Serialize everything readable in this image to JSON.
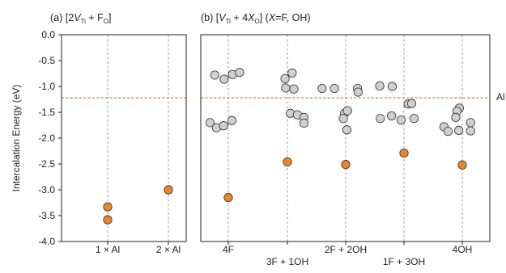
{
  "chart_data": [
    {
      "type": "scatter",
      "panel_title": {
        "pre": "(a) [2",
        "v": "V",
        "vsub": "Ti",
        "mid": " + F",
        "fsub": "O",
        "post": "]"
      },
      "ylabel": "Intercalation Energy (eV)",
      "ylim": [
        -4.0,
        0.0
      ],
      "yticks": [
        0.0,
        -0.5,
        -1.0,
        -1.5,
        -2.0,
        -2.5,
        -3.0,
        -3.5,
        -4.0
      ],
      "categories": [
        "1 × Al",
        "2 × Al"
      ],
      "reference_label": "Al",
      "reference_value": -1.22,
      "series": [
        {
          "color": "#e8862a",
          "points": [
            {
              "category": 0,
              "offset": 0,
              "y": -3.33
            },
            {
              "category": 0,
              "offset": 0,
              "y": -3.58
            },
            {
              "category": 1,
              "offset": 0,
              "y": -3.0
            }
          ]
        }
      ]
    },
    {
      "type": "scatter",
      "panel_title": {
        "pre": "(b) [",
        "v": "V",
        "vsub": "Ti",
        "mid": " + 4",
        "x": "X",
        "xsub": "O",
        "post": "] (",
        "xv": "X",
        "post2": "=F, OH)"
      },
      "ylim": [
        -4.0,
        0.0
      ],
      "categories": [
        "4F",
        "3F + 1OH",
        "2F + 2OH",
        "1F + 3OH",
        "4OH"
      ],
      "category_label_row": [
        0,
        1,
        0,
        1,
        0
      ],
      "reference_label": "Al",
      "reference_value": -1.22,
      "series": [
        {
          "color": "#cfcfcf",
          "points": [
            {
              "category": 0,
              "offset": -0.23,
              "y": -0.78
            },
            {
              "category": 0,
              "offset": -0.07,
              "y": -0.86
            },
            {
              "category": 0,
              "offset": 0.07,
              "y": -0.77
            },
            {
              "category": 0,
              "offset": 0.19,
              "y": -0.73
            },
            {
              "category": 0,
              "offset": -0.31,
              "y": -1.7
            },
            {
              "category": 0,
              "offset": -0.2,
              "y": -1.8
            },
            {
              "category": 0,
              "offset": -0.08,
              "y": -1.76
            },
            {
              "category": 0,
              "offset": 0.06,
              "y": -1.66
            },
            {
              "category": 1,
              "offset": -0.04,
              "y": -0.85
            },
            {
              "category": 1,
              "offset": 0.08,
              "y": -0.74
            },
            {
              "category": 1,
              "offset": -0.03,
              "y": -1.03
            },
            {
              "category": 1,
              "offset": 0.11,
              "y": -1.05
            },
            {
              "category": 1,
              "offset": 0.05,
              "y": -1.52
            },
            {
              "category": 1,
              "offset": 0.17,
              "y": -1.55
            },
            {
              "category": 1,
              "offset": 0.28,
              "y": -1.6
            },
            {
              "category": 1,
              "offset": 0.28,
              "y": -1.71
            },
            {
              "category": 2,
              "offset": -0.4,
              "y": -1.04
            },
            {
              "category": 2,
              "offset": -0.19,
              "y": -1.04
            },
            {
              "category": 2,
              "offset": -0.02,
              "y": -1.52
            },
            {
              "category": 2,
              "offset": 0.03,
              "y": -1.47
            },
            {
              "category": 2,
              "offset": -0.04,
              "y": -1.62
            },
            {
              "category": 2,
              "offset": 0.02,
              "y": -1.84
            },
            {
              "category": 2,
              "offset": 0.2,
              "y": -1.04
            },
            {
              "category": 2,
              "offset": 0.21,
              "y": -1.11
            },
            {
              "category": 3,
              "offset": -0.41,
              "y": -0.99
            },
            {
              "category": 3,
              "offset": -0.2,
              "y": -1.0
            },
            {
              "category": 3,
              "offset": 0.07,
              "y": -1.34
            },
            {
              "category": 3,
              "offset": 0.13,
              "y": -1.33
            },
            {
              "category": 3,
              "offset": -0.4,
              "y": -1.62
            },
            {
              "category": 3,
              "offset": -0.21,
              "y": -1.57
            },
            {
              "category": 3,
              "offset": -0.05,
              "y": -1.65
            },
            {
              "category": 3,
              "offset": 0.17,
              "y": -1.62
            },
            {
              "category": 4,
              "offset": -0.05,
              "y": -1.42
            },
            {
              "category": 4,
              "offset": -0.09,
              "y": -1.48
            },
            {
              "category": 4,
              "offset": -0.11,
              "y": -1.6
            },
            {
              "category": 4,
              "offset": -0.31,
              "y": -1.78
            },
            {
              "category": 4,
              "offset": -0.24,
              "y": -1.87
            },
            {
              "category": 4,
              "offset": -0.06,
              "y": -1.85
            },
            {
              "category": 4,
              "offset": 0.14,
              "y": -1.7
            },
            {
              "category": 4,
              "offset": 0.14,
              "y": -1.86
            }
          ]
        },
        {
          "color": "#e8862a",
          "points": [
            {
              "category": 0,
              "offset": 0.0,
              "y": -3.15
            },
            {
              "category": 1,
              "offset": 0.0,
              "y": -2.46
            },
            {
              "category": 2,
              "offset": 0.0,
              "y": -2.51
            },
            {
              "category": 3,
              "offset": 0.0,
              "y": -2.29
            },
            {
              "category": 4,
              "offset": 0.0,
              "y": -2.52
            }
          ]
        }
      ]
    }
  ]
}
